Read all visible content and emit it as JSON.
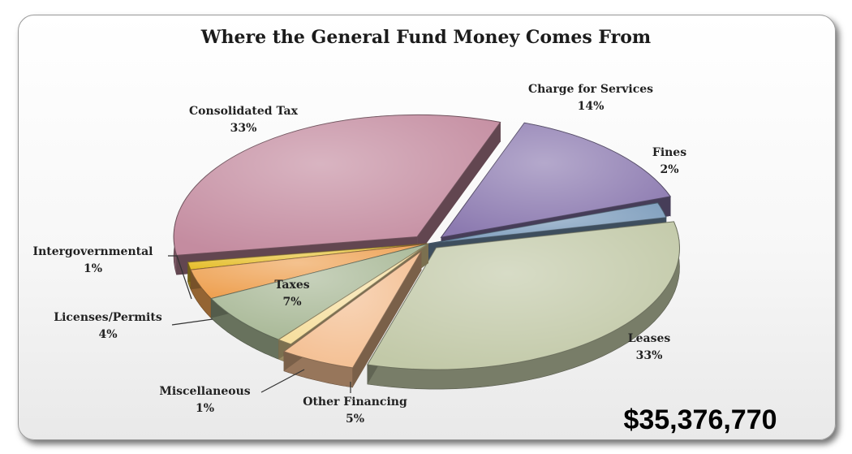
{
  "chart_data": {
    "type": "pie",
    "title": "Where the General Fund Money Comes From",
    "total_label": "$35,376,770",
    "slices": [
      {
        "name": "Charge for Services",
        "pct_label": "14%",
        "value": 14,
        "color": "#8c7ab0"
      },
      {
        "name": "Fines",
        "pct_label": "2%",
        "value": 2,
        "color": "#7c9cbc"
      },
      {
        "name": "Leases",
        "pct_label": "33%",
        "value": 33,
        "color": "#c2c9a8"
      },
      {
        "name": "Other Financing",
        "pct_label": "5%",
        "value": 5,
        "color": "#f4bf92"
      },
      {
        "name": "Miscellaneous",
        "pct_label": "1%",
        "value": 1,
        "color": "#f6dfa0"
      },
      {
        "name": "Taxes",
        "pct_label": "7%",
        "value": 7,
        "color": "#a8b896"
      },
      {
        "name": "Licenses/Permits",
        "pct_label": "4%",
        "value": 4,
        "color": "#eea152"
      },
      {
        "name": "Intergovernmental",
        "pct_label": "1%",
        "value": 1,
        "color": "#e6c030"
      },
      {
        "name": "Consolidated Tax",
        "pct_label": "33%",
        "value": 33,
        "color": "#c48ca0"
      }
    ]
  }
}
